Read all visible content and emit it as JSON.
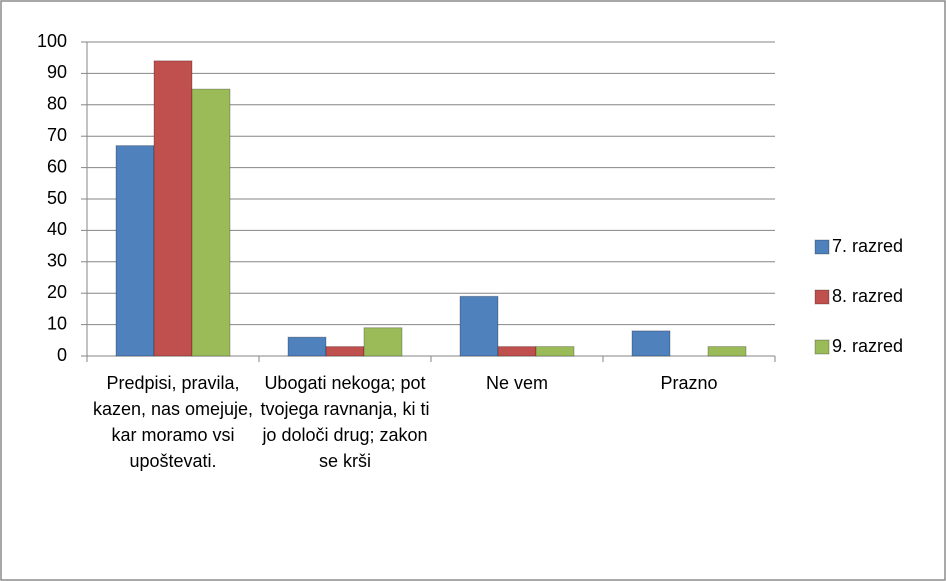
{
  "chart_data": {
    "type": "bar",
    "categories": [
      "Predpisi, pravila, kazen, nas omejuje, kar moramo vsi upoštevati.",
      "Ubogati nekoga; pot tvojega ravnanja, ki ti jo določi drug; zakon se krši",
      "Ne vem",
      "Prazno"
    ],
    "series": [
      {
        "name": "7. razred",
        "color": "#4f81bd",
        "values": [
          67,
          6,
          19,
          8
        ]
      },
      {
        "name": "8. razred",
        "color": "#c0504d",
        "values": [
          94,
          3,
          3,
          0
        ]
      },
      {
        "name": "9. razred",
        "color": "#9bbb59",
        "values": [
          85,
          9,
          3,
          3
        ]
      }
    ],
    "ylim": [
      0,
      100
    ],
    "yticks": [
      0,
      10,
      20,
      30,
      40,
      50,
      60,
      70,
      80,
      90,
      100
    ],
    "grid": true,
    "legend": "right"
  }
}
